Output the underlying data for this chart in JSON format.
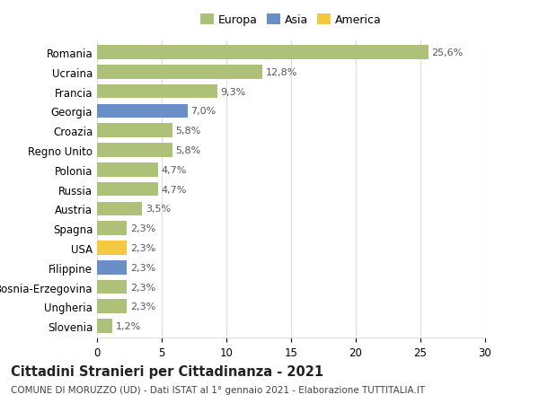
{
  "countries": [
    "Romania",
    "Ucraina",
    "Francia",
    "Georgia",
    "Croazia",
    "Regno Unito",
    "Polonia",
    "Russia",
    "Austria",
    "Spagna",
    "USA",
    "Filippine",
    "Bosnia-Erzegovina",
    "Ungheria",
    "Slovenia"
  ],
  "values": [
    25.6,
    12.8,
    9.3,
    7.0,
    5.8,
    5.8,
    4.7,
    4.7,
    3.5,
    2.3,
    2.3,
    2.3,
    2.3,
    2.3,
    1.2
  ],
  "labels": [
    "25,6%",
    "12,8%",
    "9,3%",
    "7,0%",
    "5,8%",
    "5,8%",
    "4,7%",
    "4,7%",
    "3,5%",
    "2,3%",
    "2,3%",
    "2,3%",
    "2,3%",
    "2,3%",
    "1,2%"
  ],
  "bar_colors": [
    "#adc178",
    "#adc178",
    "#adc178",
    "#6a8fc7",
    "#adc178",
    "#adc178",
    "#adc178",
    "#adc178",
    "#adc178",
    "#adc178",
    "#f5c842",
    "#6a8fc7",
    "#adc178",
    "#adc178",
    "#adc178"
  ],
  "legend_labels": [
    "Europa",
    "Asia",
    "America"
  ],
  "legend_colors": [
    "#adc178",
    "#6a8fc7",
    "#f5c842"
  ],
  "title_main": "Cittadini Stranieri per Cittadinanza - 2021",
  "title_sub": "COMUNE DI MORUZZO (UD) - Dati ISTAT al 1° gennaio 2021 - Elaborazione TUTTITALIA.IT",
  "xlim": [
    0,
    30
  ],
  "xticks": [
    0,
    5,
    10,
    15,
    20,
    25,
    30
  ],
  "bg_color": "#ffffff",
  "grid_color": "#dddddd",
  "bar_label_fontsize": 8,
  "ytick_fontsize": 8.5,
  "xtick_fontsize": 8.5,
  "title_fontsize": 10.5,
  "subtitle_fontsize": 7.5,
  "bar_height": 0.72
}
